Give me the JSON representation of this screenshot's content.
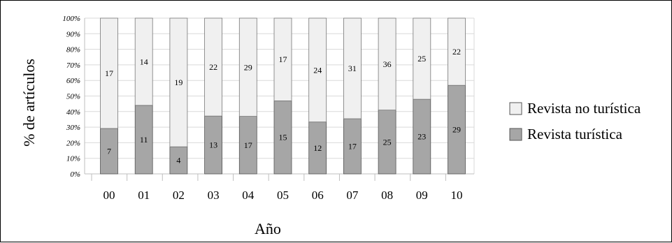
{
  "chart_data": {
    "type": "bar",
    "stacked": "percent",
    "categories": [
      "00",
      "01",
      "02",
      "03",
      "04",
      "05",
      "06",
      "07",
      "08",
      "09",
      "10"
    ],
    "series": [
      {
        "name": "Revista turística",
        "values": [
          7,
          11,
          4,
          13,
          17,
          15,
          12,
          17,
          25,
          23,
          29
        ]
      },
      {
        "name": "Revista no turística",
        "values": [
          17,
          14,
          19,
          22,
          29,
          17,
          24,
          31,
          36,
          25,
          22
        ]
      }
    ],
    "ylabel": "% de artículos",
    "xlabel": "Año",
    "ylim": [
      0,
      100
    ],
    "y_ticks": [
      "0%",
      "10%",
      "20%",
      "30%",
      "40%",
      "50%",
      "60%",
      "70%",
      "80%",
      "90%",
      "100%"
    ],
    "grid": true,
    "legend_position": "right",
    "colors": {
      "Revista turística": "#a6a6a6",
      "Revista no turística": "#f0f0f0"
    }
  }
}
